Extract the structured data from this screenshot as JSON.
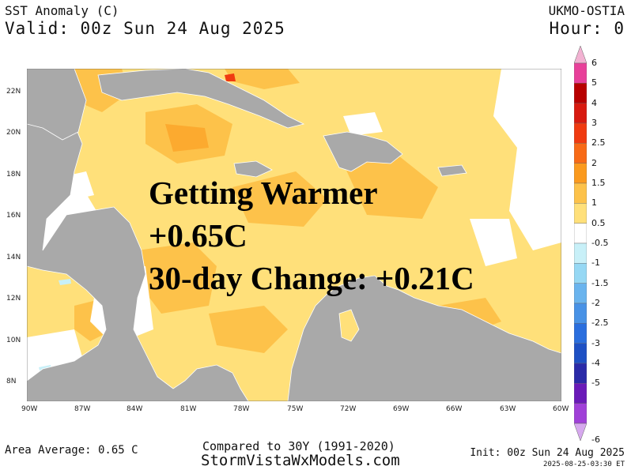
{
  "header": {
    "title": "SST Anomaly (C)",
    "valid": "Valid: 00z Sun 24 Aug 2025",
    "model": "UKMO-OSTIA",
    "hour": "Hour: 0"
  },
  "map": {
    "region": "Caribbean Sea",
    "lat_labels": [
      "22N",
      "20N",
      "18N",
      "16N",
      "14N",
      "12N",
      "10N",
      "8N"
    ],
    "lon_labels": [
      "90W",
      "87W",
      "84W",
      "81W",
      "78W",
      "75W",
      "72W",
      "69W",
      "66W",
      "63W",
      "60W"
    ],
    "land_color": "#a9a9a9",
    "ocean_dominant_color": "#ffe07a"
  },
  "overlay": {
    "line1": "Getting Warmer",
    "line2": "+0.65C",
    "line3": "30-day Change: +0.21C"
  },
  "colorbar": {
    "labels": [
      "6",
      "5",
      "4",
      "3",
      "2.5",
      "2",
      "1.5",
      "1",
      "0.5",
      "-0.5",
      "-1",
      "-1.5",
      "-2",
      "-2.5",
      "-3",
      "-4",
      "-5",
      "-6"
    ],
    "colors": [
      "#e8409a",
      "#b80000",
      "#d81a10",
      "#f03a10",
      "#f86a16",
      "#fb9a1e",
      "#fdc24a",
      "#ffe07a",
      "#ffffff",
      "#c8f0f8",
      "#96d8f4",
      "#6ab4ee",
      "#4892e6",
      "#2a6ede",
      "#1e50c4",
      "#2a2aa8",
      "#6a1ab8",
      "#a040d8"
    ],
    "top_arrow_color": "#f2b2d2",
    "bottom_arrow_color": "#d6a8ee"
  },
  "footer": {
    "area_average": "Area Average: 0.65 C",
    "compared": "Compared to 30Y (1991-2020)",
    "site": "StormVistaWxModels.com",
    "init": "Init: 00z Sun 24 Aug 2025",
    "generated": "2025-08-25-03:30 ET"
  }
}
